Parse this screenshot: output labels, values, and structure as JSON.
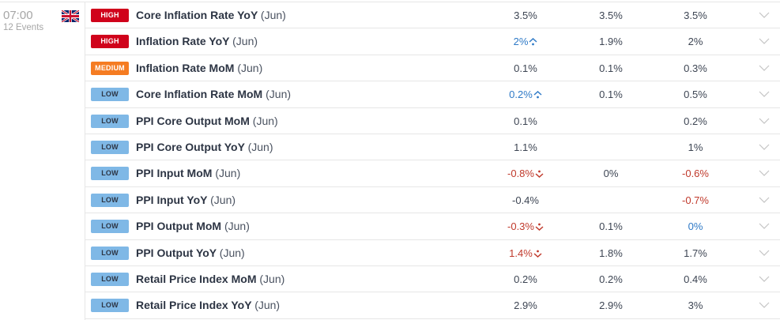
{
  "group": {
    "time": "07:00",
    "events": "12 Events",
    "flag": "uk-flag"
  },
  "colors": {
    "high": "#d0021b",
    "medium": "#f57c22",
    "low": "#7fb8e6",
    "positive": "#2f7ac7",
    "negative": "#c0392b"
  },
  "rows": [
    {
      "impact": "HIGH",
      "level": "high",
      "title": "Core Inflation Rate YoY",
      "period": "(Jun)",
      "actual": "3.5%",
      "actual_tone": "",
      "actual_icon": "",
      "forecast": "3.5%",
      "previous": "3.5%",
      "previous_tone": ""
    },
    {
      "impact": "HIGH",
      "level": "high",
      "title": "Inflation Rate YoY",
      "period": "(Jun)",
      "actual": "2%",
      "actual_tone": "pos",
      "actual_icon": "up",
      "forecast": "1.9%",
      "previous": "2%",
      "previous_tone": ""
    },
    {
      "impact": "MEDIUM",
      "level": "medium",
      "title": "Inflation Rate MoM",
      "period": "(Jun)",
      "actual": "0.1%",
      "actual_tone": "",
      "actual_icon": "",
      "forecast": "0.1%",
      "previous": "0.3%",
      "previous_tone": ""
    },
    {
      "impact": "LOW",
      "level": "low",
      "title": "Core Inflation Rate MoM",
      "period": "(Jun)",
      "actual": "0.2%",
      "actual_tone": "pos",
      "actual_icon": "up",
      "forecast": "0.1%",
      "previous": "0.5%",
      "previous_tone": ""
    },
    {
      "impact": "LOW",
      "level": "low",
      "title": "PPI Core Output MoM",
      "period": "(Jun)",
      "actual": "0.1%",
      "actual_tone": "",
      "actual_icon": "",
      "forecast": "",
      "previous": "0.2%",
      "previous_tone": ""
    },
    {
      "impact": "LOW",
      "level": "low",
      "title": "PPI Core Output YoY",
      "period": "(Jun)",
      "actual": "1.1%",
      "actual_tone": "",
      "actual_icon": "",
      "forecast": "",
      "previous": "1%",
      "previous_tone": ""
    },
    {
      "impact": "LOW",
      "level": "low",
      "title": "PPI Input MoM",
      "period": "(Jun)",
      "actual": "-0.8%",
      "actual_tone": "neg",
      "actual_icon": "down",
      "forecast": "0%",
      "previous": "-0.6%",
      "previous_tone": "neg"
    },
    {
      "impact": "LOW",
      "level": "low",
      "title": "PPI Input YoY",
      "period": "(Jun)",
      "actual": "-0.4%",
      "actual_tone": "",
      "actual_icon": "",
      "forecast": "",
      "previous": "-0.7%",
      "previous_tone": "neg"
    },
    {
      "impact": "LOW",
      "level": "low",
      "title": "PPI Output MoM",
      "period": "(Jun)",
      "actual": "-0.3%",
      "actual_tone": "neg",
      "actual_icon": "down",
      "forecast": "0.1%",
      "previous": "0%",
      "previous_tone": "pos"
    },
    {
      "impact": "LOW",
      "level": "low",
      "title": "PPI Output YoY",
      "period": "(Jun)",
      "actual": "1.4%",
      "actual_tone": "neg",
      "actual_icon": "down",
      "forecast": "1.8%",
      "previous": "1.7%",
      "previous_tone": ""
    },
    {
      "impact": "LOW",
      "level": "low",
      "title": "Retail Price Index MoM",
      "period": "(Jun)",
      "actual": "0.2%",
      "actual_tone": "",
      "actual_icon": "",
      "forecast": "0.2%",
      "previous": "0.4%",
      "previous_tone": ""
    },
    {
      "impact": "LOW",
      "level": "low",
      "title": "Retail Price Index YoY",
      "period": "(Jun)",
      "actual": "2.9%",
      "actual_tone": "",
      "actual_icon": "",
      "forecast": "2.9%",
      "previous": "3%",
      "previous_tone": ""
    }
  ]
}
